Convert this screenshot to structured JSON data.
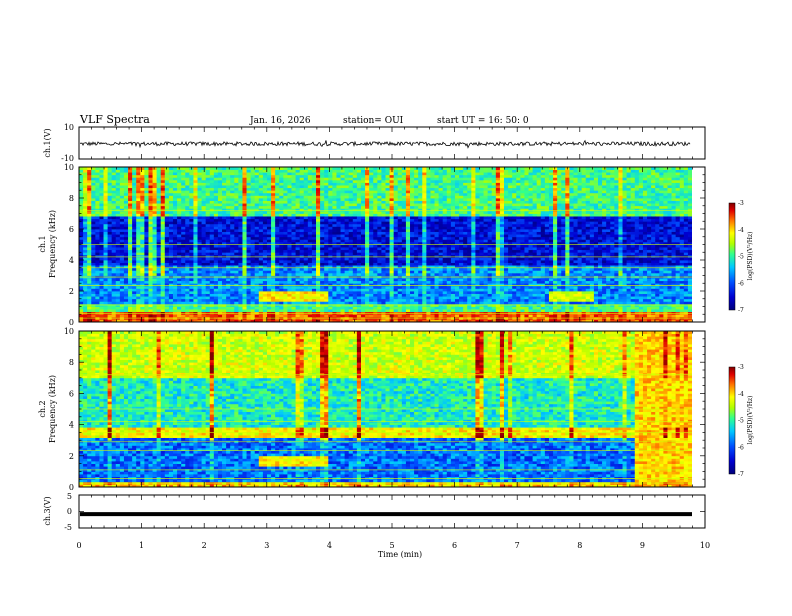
{
  "header": {
    "title": "VLF Spectra",
    "date": "Jan. 16, 2026",
    "station": "station= OUI",
    "start": "start  UT =   16: 50: 0"
  },
  "colors": {
    "spectrum_stops": [
      "#00007a",
      "#0000d0",
      "#0050ff",
      "#00c8ff",
      "#30ff90",
      "#b0ff00",
      "#ffff00",
      "#ff7000",
      "#e00000",
      "#800000"
    ],
    "trace": "#000000",
    "frame": "#000000"
  },
  "chart_data": [
    {
      "type": "line",
      "id": "ch1-waveform",
      "ylabel": "ch.1(V)",
      "ylim": [
        -10,
        10
      ],
      "yticks": [
        "10",
        "-10"
      ],
      "xlim": [
        0,
        10
      ],
      "description_level": "noise trace around -0.5 V",
      "series": [
        {
          "values_approx_mean": -0.5,
          "amplitude": 1.2
        }
      ]
    },
    {
      "type": "heatmap",
      "id": "ch1-spectrogram",
      "ylabel": "ch.1\nFrequency  (kHz)",
      "ylim": [
        0,
        10
      ],
      "yticks": [
        "0",
        "2",
        "4",
        "6",
        "8",
        "10"
      ],
      "xlim": [
        0,
        10
      ],
      "colorbar": {
        "label": "log(PSD)(V²/Hz)",
        "range": [
          -7,
          -3
        ],
        "ticks": [
          "-3",
          "-4",
          "-5",
          "-6",
          "-7"
        ]
      },
      "bands": [
        {
          "f_lo": 0.0,
          "f_hi": 0.6,
          "level": -3.8
        },
        {
          "f_lo": 0.6,
          "f_hi": 1.2,
          "level": -5.2
        },
        {
          "f_lo": 1.2,
          "f_hi": 3.6,
          "level": -5.9
        },
        {
          "f_lo": 3.6,
          "f_hi": 6.8,
          "level": -6.5
        },
        {
          "f_lo": 6.8,
          "f_hi": 10.0,
          "level": -5.2
        }
      ],
      "events": [
        {
          "t_start": 2.9,
          "t_end": 3.95,
          "f": 1.6,
          "level": -4.3
        },
        {
          "t_start": 7.5,
          "t_end": 8.2,
          "f": 1.6,
          "level": -4.6
        }
      ]
    },
    {
      "type": "heatmap",
      "id": "ch2-spectrogram",
      "ylabel": "ch.2\nFrequency  (kHz)",
      "ylim": [
        0,
        10
      ],
      "yticks": [
        "0",
        "2",
        "4",
        "6",
        "8",
        "10"
      ],
      "xlim": [
        0,
        10
      ],
      "colorbar": {
        "label": "log(PSD)(V²/Hz)",
        "range": [
          -7,
          -3
        ],
        "ticks": [
          "-3",
          "-4",
          "-5",
          "-6",
          "-7"
        ]
      },
      "bands": [
        {
          "f_lo": 0.0,
          "f_hi": 0.4,
          "level": -4.2
        },
        {
          "f_lo": 0.4,
          "f_hi": 3.2,
          "level": -6.0
        },
        {
          "f_lo": 3.2,
          "f_hi": 3.8,
          "level": -4.4
        },
        {
          "f_lo": 3.8,
          "f_hi": 7.0,
          "level": -5.4
        },
        {
          "f_lo": 7.0,
          "f_hi": 10.0,
          "level": -4.6
        }
      ],
      "events": [
        {
          "t_start": 2.9,
          "t_end": 3.95,
          "f": 1.6,
          "level": -4.3
        },
        {
          "t_start": 8.85,
          "t_end": 9.8,
          "f": 5.0,
          "level": -4.2
        }
      ]
    },
    {
      "type": "line",
      "id": "ch3-waveform",
      "ylabel": "ch.3(V)",
      "ylim": [
        -5,
        5
      ],
      "yticks": [
        "5",
        "0",
        "-5"
      ],
      "xlim": [
        0,
        10
      ],
      "xlabel": "Time  (min)",
      "xticks": [
        "0",
        "1",
        "2",
        "3",
        "4",
        "5",
        "6",
        "7",
        "8",
        "9",
        "10"
      ],
      "series": [
        {
          "values_approx_mean": -0.8,
          "amplitude": 0.1
        }
      ]
    }
  ]
}
